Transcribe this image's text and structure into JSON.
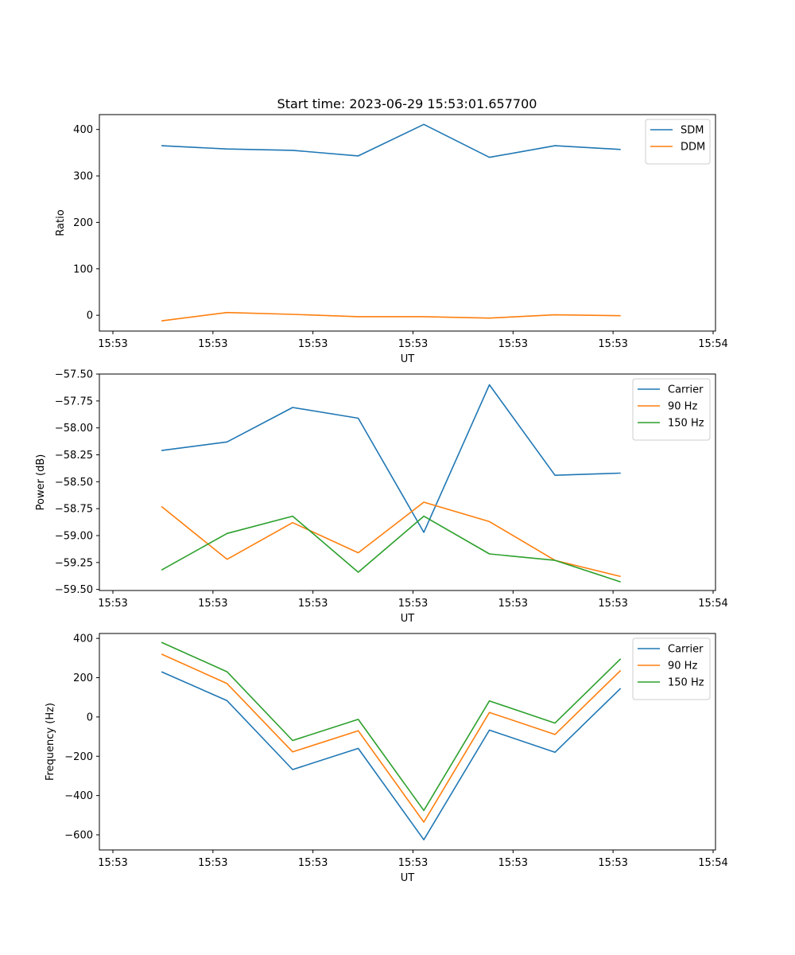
{
  "figure": {
    "title": "Start time: 2023-06-29 15:53:01.657700"
  },
  "colors": {
    "blue": "#1f77b4",
    "orange": "#ff7f0e",
    "green": "#2ca02c"
  },
  "chart_data": [
    {
      "type": "line",
      "title": "Start time: 2023-06-29 15:53:01.657700",
      "xlabel": "UT",
      "ylabel": "Ratio",
      "x_ticks": [
        "15:53",
        "15:53",
        "15:53",
        "15:53",
        "15:53",
        "15:53",
        "15:54"
      ],
      "x_tick_fracs": [
        0,
        0.1667,
        0.3333,
        0.5,
        0.6667,
        0.8333,
        1.0
      ],
      "x_point_fracs": [
        0.0809,
        0.1902,
        0.2995,
        0.4087,
        0.518,
        0.6273,
        0.7366,
        0.8459
      ],
      "ylim": [
        -34,
        432
      ],
      "y_ticks": [
        0,
        100,
        200,
        300,
        400
      ],
      "legend": "top-right",
      "grid": false,
      "series": [
        {
          "name": "SDM",
          "color": "#1f77b4",
          "values": [
            365,
            358,
            355,
            343,
            411,
            340,
            365,
            357
          ]
        },
        {
          "name": "DDM",
          "color": "#ff7f0e",
          "values": [
            -12,
            6,
            2,
            -3,
            -3,
            -6,
            1,
            -1
          ]
        }
      ]
    },
    {
      "type": "line",
      "xlabel": "UT",
      "ylabel": "Power (dB)",
      "x_ticks": [
        "15:53",
        "15:53",
        "15:53",
        "15:53",
        "15:53",
        "15:53",
        "15:54"
      ],
      "x_tick_fracs": [
        0,
        0.1667,
        0.3333,
        0.5,
        0.6667,
        0.8333,
        1.0
      ],
      "x_point_fracs": [
        0.0809,
        0.1902,
        0.2995,
        0.4087,
        0.518,
        0.6273,
        0.7366,
        0.8459
      ],
      "ylim": [
        -59.51,
        -57.5
      ],
      "y_ticks": [
        -59.5,
        -59.25,
        -59.0,
        -58.75,
        -58.5,
        -58.25,
        -58.0,
        -57.75,
        -57.5
      ],
      "y_tick_labels": [
        "−59.50",
        "−59.25",
        "−59.00",
        "−58.75",
        "−58.50",
        "−58.25",
        "−58.00",
        "−57.75",
        "−57.50"
      ],
      "legend": "top-right",
      "grid": false,
      "series": [
        {
          "name": "Carrier",
          "color": "#1f77b4",
          "values": [
            -58.21,
            -58.13,
            -57.81,
            -57.91,
            -58.97,
            -57.6,
            -58.44,
            -58.42
          ]
        },
        {
          "name": "90 Hz",
          "color": "#ff7f0e",
          "values": [
            -58.73,
            -59.22,
            -58.88,
            -59.16,
            -58.69,
            -58.87,
            -59.23,
            -59.38
          ]
        },
        {
          "name": "150 Hz",
          "color": "#2ca02c",
          "values": [
            -59.32,
            -58.98,
            -58.82,
            -59.34,
            -58.82,
            -59.17,
            -59.23,
            -59.43
          ]
        }
      ]
    },
    {
      "type": "line",
      "xlabel": "UT",
      "ylabel": "Frequency (Hz)",
      "x_ticks": [
        "15:53",
        "15:53",
        "15:53",
        "15:53",
        "15:53",
        "15:53",
        "15:54"
      ],
      "x_tick_fracs": [
        0,
        0.1667,
        0.3333,
        0.5,
        0.6667,
        0.8333,
        1.0
      ],
      "x_point_fracs": [
        0.0809,
        0.1902,
        0.2995,
        0.4087,
        0.518,
        0.6273,
        0.7366,
        0.8459
      ],
      "ylim": [
        -677,
        425
      ],
      "y_ticks": [
        -600,
        -400,
        -200,
        0,
        200,
        400
      ],
      "y_tick_labels": [
        "−600",
        "−400",
        "−200",
        "0",
        "200",
        "400"
      ],
      "legend": "top-right",
      "grid": false,
      "series": [
        {
          "name": "Carrier",
          "color": "#1f77b4",
          "values": [
            230,
            83,
            -268,
            -160,
            -625,
            -67,
            -180,
            146
          ]
        },
        {
          "name": "90 Hz",
          "color": "#ff7f0e",
          "values": [
            320,
            170,
            -178,
            -70,
            -535,
            23,
            -89,
            237
          ]
        },
        {
          "name": "150 Hz",
          "color": "#2ca02c",
          "values": [
            380,
            230,
            -120,
            -12,
            -476,
            82,
            -31,
            296
          ]
        }
      ]
    }
  ]
}
